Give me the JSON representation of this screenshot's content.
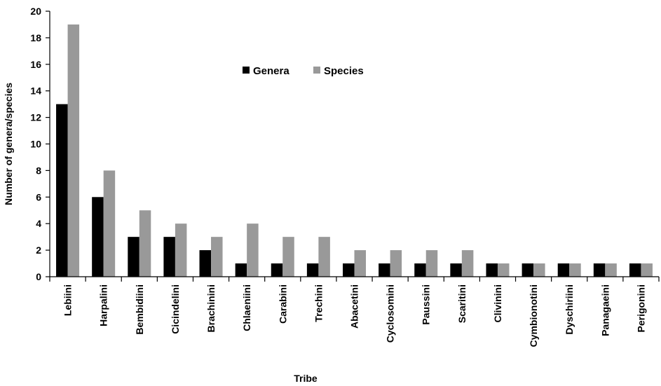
{
  "chart_data": {
    "type": "bar",
    "title": "",
    "xlabel": "Tribe",
    "ylabel": "Number of genera/species",
    "ylim": [
      0,
      20
    ],
    "yticks": [
      0,
      2,
      4,
      6,
      8,
      10,
      12,
      14,
      16,
      18,
      20
    ],
    "grid": false,
    "legend_position": "top-center",
    "categories": [
      "Lebiini",
      "Harpalini",
      "Bembidiini",
      "Cicindelini",
      "Brachinini",
      "Chlaeniini",
      "Carabini",
      "Trechini",
      "Abacetini",
      "Cyclosomini",
      "Paussini",
      "Scaritini",
      "Clivinini",
      "Cymbionotini",
      "Dyschiriini",
      "Panagaeini",
      "Perigonini"
    ],
    "series": [
      {
        "name": "Genera",
        "color": "#000000",
        "values": [
          13,
          6,
          3,
          3,
          2,
          1,
          1,
          1,
          1,
          1,
          1,
          1,
          1,
          1,
          1,
          1,
          1
        ]
      },
      {
        "name": "Species",
        "color": "#999999",
        "values": [
          19,
          8,
          5,
          4,
          3,
          4,
          3,
          3,
          2,
          2,
          2,
          2,
          1,
          1,
          1,
          1,
          1
        ]
      }
    ]
  }
}
